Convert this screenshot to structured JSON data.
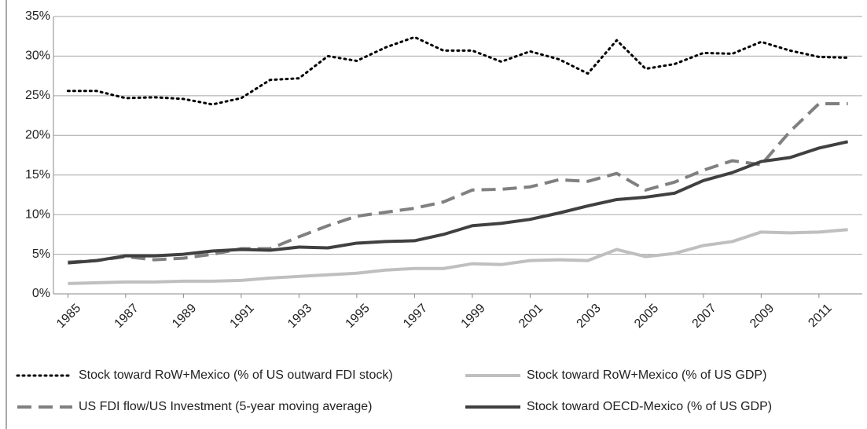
{
  "chart_data": {
    "type": "line",
    "x": [
      1985,
      1986,
      1987,
      1988,
      1989,
      1990,
      1991,
      1992,
      1993,
      1994,
      1995,
      1996,
      1997,
      1998,
      1999,
      2000,
      2001,
      2002,
      2003,
      2004,
      2005,
      2006,
      2007,
      2008,
      2009,
      2010,
      2011,
      2012
    ],
    "xlim": [
      1984.5,
      2012.5
    ],
    "xticks": [
      1985,
      1987,
      1989,
      1991,
      1993,
      1995,
      1997,
      1999,
      2001,
      2003,
      2005,
      2007,
      2009,
      2011
    ],
    "ylim": [
      0,
      35
    ],
    "yticks": [
      {
        "value": 0,
        "label": "0%"
      },
      {
        "value": 5,
        "label": "5%"
      },
      {
        "value": 10,
        "label": "10%"
      },
      {
        "value": 15,
        "label": "15%"
      },
      {
        "value": 20,
        "label": "20%"
      },
      {
        "value": 25,
        "label": "25%"
      },
      {
        "value": 30,
        "label": "30%"
      },
      {
        "value": 35,
        "label": "35%"
      }
    ],
    "grid": true,
    "series": [
      {
        "name": "Stock toward RoW+Mexico (% of US outward FDI stock)",
        "color": "#000000",
        "dash": "dotted",
        "values": [
          25.6,
          25.6,
          24.7,
          24.8,
          24.6,
          23.9,
          24.7,
          27.0,
          27.2,
          30.0,
          29.4,
          31.1,
          32.4,
          30.7,
          30.7,
          29.3,
          30.6,
          29.6,
          27.8,
          32.0,
          28.4,
          29.0,
          30.4,
          30.3,
          31.8,
          30.7,
          29.9,
          29.8
        ]
      },
      {
        "name": "Stock toward RoW+Mexico (% of US GDP)",
        "color": "#bfbfbf",
        "dash": "solid",
        "values": [
          1.3,
          1.4,
          1.5,
          1.5,
          1.6,
          1.6,
          1.7,
          2.0,
          2.2,
          2.4,
          2.6,
          3.0,
          3.2,
          3.2,
          3.8,
          3.7,
          4.2,
          4.3,
          4.2,
          5.6,
          4.7,
          5.1,
          6.1,
          6.6,
          7.8,
          7.7,
          7.8,
          8.1
        ]
      },
      {
        "name": "US FDI flow/US Investment (5-year moving average)",
        "color": "#808080",
        "dash": "dashed",
        "values": [
          4.0,
          4.2,
          4.7,
          4.3,
          4.5,
          5.0,
          5.7,
          5.7,
          7.2,
          8.6,
          9.8,
          10.3,
          10.8,
          11.6,
          13.1,
          13.2,
          13.5,
          14.4,
          14.2,
          15.2,
          13.1,
          14.1,
          15.6,
          16.8,
          16.3,
          20.5,
          24.0,
          24.0
        ]
      },
      {
        "name": "Stock toward OECD-Mexico (% of US GDP)",
        "color": "#404040",
        "dash": "solid",
        "values": [
          3.9,
          4.2,
          4.8,
          4.8,
          5.0,
          5.4,
          5.6,
          5.5,
          5.9,
          5.8,
          6.4,
          6.6,
          6.7,
          7.5,
          8.6,
          8.9,
          9.4,
          10.2,
          11.1,
          11.9,
          12.2,
          12.7,
          14.3,
          15.3,
          16.7,
          17.2,
          18.4,
          19.2
        ]
      }
    ]
  }
}
